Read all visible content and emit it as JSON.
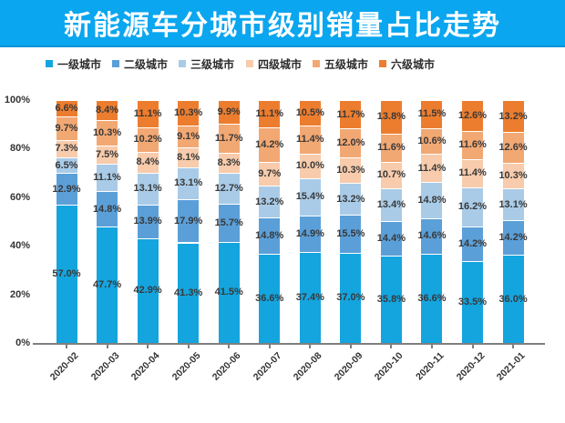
{
  "header": {
    "title": "新能源车分城市级别销量占比走势"
  },
  "colors": {
    "banner": "#0AA6EF",
    "banner_edge": "#0B93D6",
    "axis": "#7F7F7F",
    "data_label_text": "#383838",
    "title_text": "#FFFFFF"
  },
  "chart_data": {
    "type": "bar",
    "stacked": true,
    "units": "percent",
    "title": "新能源车分城市级别销量占比走势",
    "xlabel": "",
    "ylabel": "",
    "ylim": [
      0,
      100
    ],
    "grid": false,
    "legend_position": "top",
    "y_ticks": [
      "0%",
      "20%",
      "40%",
      "60%",
      "80%",
      "100%"
    ],
    "categories": [
      "2020-02",
      "2020-03",
      "2020-04",
      "2020-05",
      "2020-06",
      "2020-07",
      "2020-08",
      "2020-09",
      "2020-10",
      "2020-11",
      "2020-12",
      "2021-01"
    ],
    "series": [
      {
        "name": "一级城市",
        "color": "#14A5DF",
        "values": [
          57.0,
          47.7,
          42.9,
          41.3,
          41.5,
          36.6,
          37.4,
          37.0,
          35.8,
          36.6,
          33.5,
          36.0
        ]
      },
      {
        "name": "二级城市",
        "color": "#5B9FD8",
        "values": [
          12.9,
          14.8,
          13.9,
          17.9,
          15.7,
          14.8,
          14.9,
          15.5,
          14.4,
          14.6,
          14.2,
          14.2
        ]
      },
      {
        "name": "三级城市",
        "color": "#A9CBE7",
        "values": [
          6.5,
          11.1,
          13.1,
          13.1,
          12.7,
          13.2,
          15.4,
          13.2,
          13.4,
          14.8,
          16.2,
          13.1
        ]
      },
      {
        "name": "四级城市",
        "color": "#F7CBAB",
        "values": [
          7.3,
          7.5,
          8.4,
          8.1,
          8.3,
          9.7,
          10.0,
          10.3,
          10.7,
          11.4,
          11.4,
          10.3
        ]
      },
      {
        "name": "五级城市",
        "color": "#F2A873",
        "values": [
          9.7,
          10.3,
          10.2,
          9.1,
          11.7,
          14.2,
          11.4,
          12.0,
          11.6,
          10.6,
          11.6,
          12.6
        ]
      },
      {
        "name": "六级城市",
        "color": "#ED7D2E",
        "values": [
          6.6,
          8.4,
          11.1,
          10.3,
          9.9,
          11.1,
          10.5,
          11.7,
          13.8,
          11.5,
          12.6,
          13.2
        ]
      }
    ]
  }
}
